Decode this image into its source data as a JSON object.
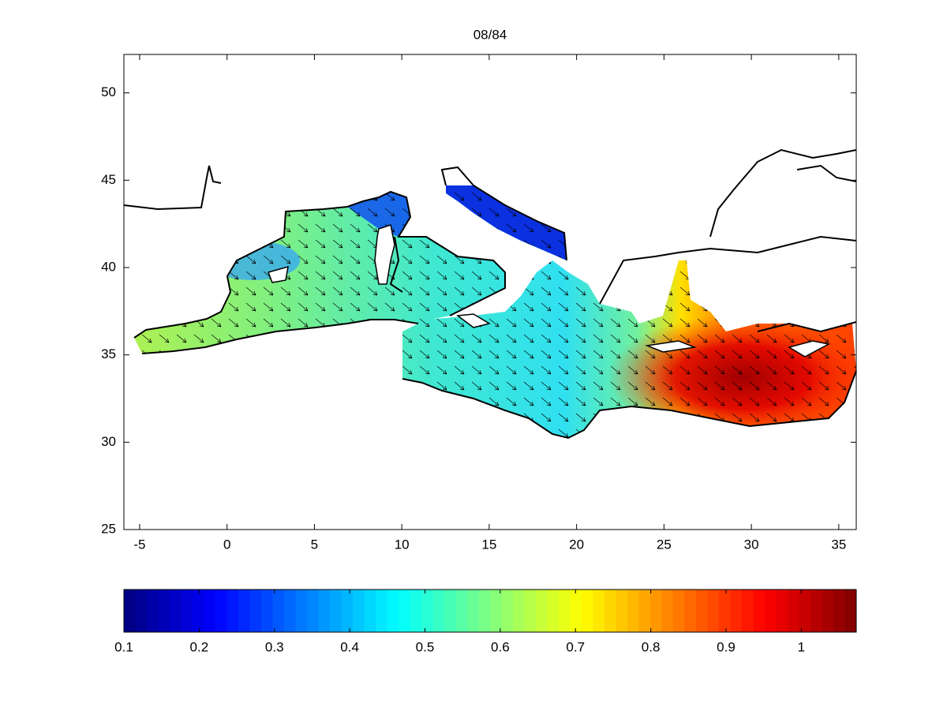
{
  "chart_data": {
    "type": "map",
    "title": "08/84",
    "xlim": [
      -5.9,
      36
    ],
    "ylim": [
      25,
      52.2
    ],
    "xticks": [
      -5,
      0,
      5,
      10,
      15,
      20,
      25,
      30,
      35
    ],
    "yticks": [
      25,
      30,
      35,
      40,
      45,
      50
    ],
    "colorbar": {
      "lim": [
        0.1,
        1.073
      ],
      "ticks": [
        0.1,
        0.2,
        0.3,
        0.4,
        0.5,
        0.6,
        0.7,
        0.8,
        0.9,
        1
      ],
      "colormap": "jet"
    }
  }
}
